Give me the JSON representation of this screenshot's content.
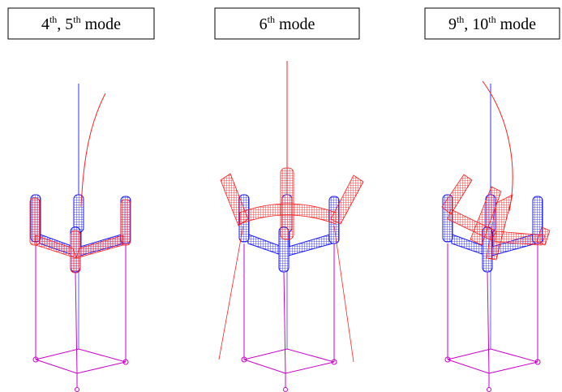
{
  "panels": [
    {
      "label": [
        "4",
        "th",
        ", 5",
        "th",
        " mode"
      ]
    },
    {
      "label": [
        "6",
        "th",
        " mode"
      ]
    },
    {
      "label": [
        "9",
        "th",
        ", 10",
        "th",
        " mode"
      ]
    }
  ]
}
